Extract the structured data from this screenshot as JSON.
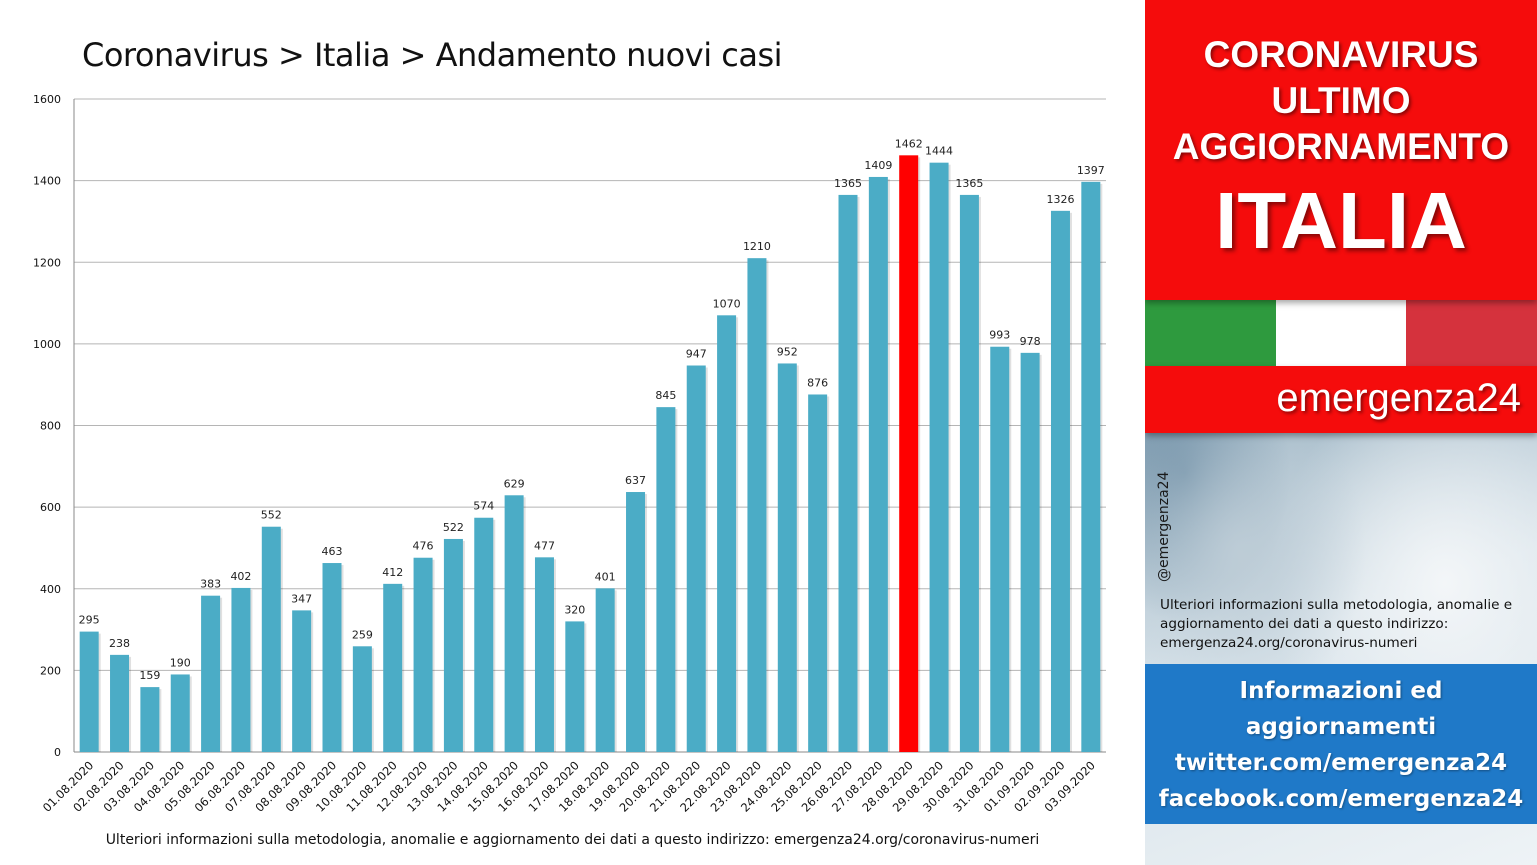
{
  "chart_data": {
    "type": "bar",
    "title": "Coronavirus > Italia > Andamento nuovi casi",
    "categories": [
      "01.08.2020",
      "02.08.2020",
      "03.08.2020",
      "04.08.2020",
      "05.08.2020",
      "06.08.2020",
      "07.08.2020",
      "08.08.2020",
      "09.08.2020",
      "10.08.2020",
      "11.08.2020",
      "12.08.2020",
      "13.08.2020",
      "14.08.2020",
      "15.08.2020",
      "16.08.2020",
      "17.08.2020",
      "18.08.2020",
      "19.08.2020",
      "20.08.2020",
      "21.08.2020",
      "22.08.2020",
      "23.08.2020",
      "24.08.2020",
      "25.08.2020",
      "26.08.2020",
      "27.08.2020",
      "28.08.2020",
      "29.08.2020",
      "30.08.2020",
      "31.08.2020",
      "01.09.2020",
      "02.09.2020",
      "03.09.2020"
    ],
    "values": [
      295,
      238,
      159,
      190,
      383,
      402,
      552,
      347,
      463,
      259,
      412,
      476,
      522,
      574,
      629,
      477,
      320,
      401,
      637,
      845,
      947,
      1070,
      1210,
      952,
      876,
      1365,
      1409,
      1462,
      1444,
      1365,
      993,
      978,
      1326,
      1397
    ],
    "highlight_index": 27,
    "ylim": [
      0,
      1600
    ],
    "yticks": [
      0,
      200,
      400,
      600,
      800,
      1000,
      1200,
      1400,
      1600
    ],
    "grid": true,
    "colors": {
      "bar": "#4bacc6",
      "highlight": "#ff0000",
      "grid": "#b5b5b5",
      "label": "#222222"
    },
    "footnote": "Ulteriori informazioni sulla metodologia, anomalie e aggiornamento dei dati a questo indirizzo: emergenza24.org/coronavirus-numeri"
  },
  "sidebar": {
    "header_lines": [
      "CORONAVIRUS",
      "ULTIMO",
      "AGGIORNAMENTO"
    ],
    "country": "ITALIA",
    "flag_colors": [
      "#2e9a3e",
      "#ffffff",
      "#d5323d"
    ],
    "brand": "emergenza24",
    "handle": "@emergenza24",
    "info_text": "Ulteriori informazioni sulla metodologia, anomalie e aggiornamento dei dati a questo indirizzo: emergenza24.org/coronavirus-numeri",
    "footer_lines": [
      "Informazioni ed",
      "aggiornamenti",
      "twitter.com/emergenza24",
      "facebook.com/emergenza24"
    ],
    "accent_red": "#f50c0c",
    "accent_blue": "#1f79c8"
  }
}
